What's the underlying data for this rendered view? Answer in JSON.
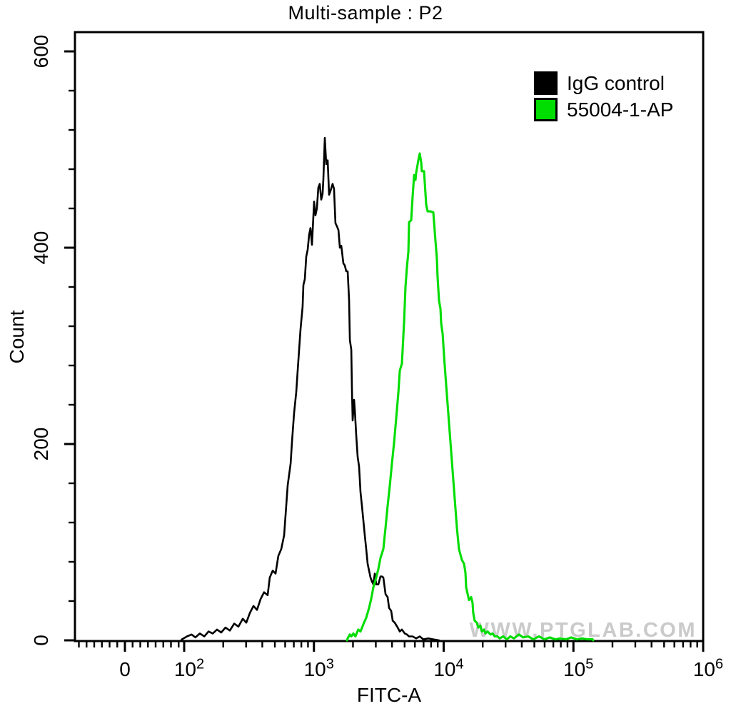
{
  "chart": {
    "title": "Multi-sample : P2",
    "watermark": "WWW.PTGLAB.COM",
    "legend": {
      "position": "top-right",
      "items": [
        {
          "label": "IgG control",
          "color": "#000000"
        },
        {
          "label": "55004-1-AP",
          "color": "#00DD00"
        }
      ]
    }
  },
  "chart_data": {
    "type": "line",
    "subtype": "flow-cytometry-histogram-overlay",
    "title": "Multi-sample : P2",
    "xlabel": "FITC-A",
    "ylabel": "Count",
    "x_scale": "biexponential (linear around 0, log10 from 1e2 to 1e6)",
    "x_ticks": [
      {
        "label": "0",
        "value": 0
      },
      {
        "base": "10",
        "exp": "2",
        "value": 100
      },
      {
        "base": "10",
        "exp": "3",
        "value": 1000
      },
      {
        "base": "10",
        "exp": "4",
        "value": 10000
      },
      {
        "base": "10",
        "exp": "5",
        "value": 100000
      },
      {
        "base": "10",
        "exp": "6",
        "value": 1000000
      }
    ],
    "ylim": [
      0,
      600
    ],
    "y_major_ticks": [
      0,
      200,
      400,
      600
    ],
    "y_minor_tick_step": 40,
    "grid": false,
    "legend_position": "top-right",
    "series": [
      {
        "name": "IgG control",
        "color": "#000000",
        "peak": {
          "x": 1210,
          "y": 512
        },
        "points": [
          [
            95,
            0
          ],
          [
            96,
            1
          ],
          [
            105,
            4
          ],
          [
            114,
            6
          ],
          [
            122,
            3
          ],
          [
            132,
            7
          ],
          [
            143,
            4
          ],
          [
            154,
            9
          ],
          [
            166,
            7
          ],
          [
            179,
            11
          ],
          [
            193,
            8
          ],
          [
            208,
            13
          ],
          [
            225,
            10
          ],
          [
            243,
            17
          ],
          [
            262,
            14
          ],
          [
            283,
            22
          ],
          [
            301,
            18
          ],
          [
            321,
            28
          ],
          [
            342,
            35
          ],
          [
            364,
            31
          ],
          [
            388,
            42
          ],
          [
            413,
            49
          ],
          [
            440,
            46
          ],
          [
            457,
            64
          ],
          [
            481,
            71
          ],
          [
            506,
            68
          ],
          [
            532,
            86
          ],
          [
            560,
            93
          ],
          [
            589,
            107
          ],
          [
            628,
            158
          ],
          [
            661,
            180
          ],
          [
            677,
            202
          ],
          [
            703,
            231
          ],
          [
            731,
            253
          ],
          [
            750,
            275
          ],
          [
            769,
            296
          ],
          [
            789,
            317
          ],
          [
            818,
            340
          ],
          [
            830,
            362
          ],
          [
            851,
            368
          ],
          [
            873,
            391
          ],
          [
            895,
            398
          ],
          [
            918,
            413
          ],
          [
            941,
            420
          ],
          [
            966,
            403
          ],
          [
            1003,
            447
          ],
          [
            1028,
            433
          ],
          [
            1054,
            440
          ],
          [
            1081,
            461
          ],
          [
            1109,
            465
          ],
          [
            1138,
            449
          ],
          [
            1167,
            455
          ],
          [
            1183,
            470
          ],
          [
            1213,
            512
          ],
          [
            1244,
            485
          ],
          [
            1276,
            489
          ],
          [
            1309,
            454
          ],
          [
            1343,
            458
          ],
          [
            1393,
            465
          ],
          [
            1429,
            460
          ],
          [
            1466,
            425
          ],
          [
            1503,
            422
          ],
          [
            1545,
            418
          ],
          [
            1584,
            400
          ],
          [
            1626,
            402
          ],
          [
            1687,
            384
          ],
          [
            1730,
            382
          ],
          [
            1774,
            376
          ],
          [
            1820,
            376
          ],
          [
            1866,
            347
          ],
          [
            1892,
            306
          ],
          [
            1940,
            296
          ],
          [
            1963,
            256
          ],
          [
            1989,
            224
          ],
          [
            2040,
            245
          ],
          [
            2065,
            235
          ],
          [
            2118,
            209
          ],
          [
            2172,
            187
          ],
          [
            2228,
            177
          ],
          [
            2286,
            151
          ],
          [
            2344,
            137
          ],
          [
            2404,
            122
          ],
          [
            2465,
            107
          ],
          [
            2529,
            93
          ],
          [
            2594,
            78
          ],
          [
            2661,
            71
          ],
          [
            2729,
            64
          ],
          [
            2799,
            60
          ],
          [
            2872,
            57
          ],
          [
            2945,
            68
          ],
          [
            3021,
            57
          ],
          [
            3139,
            57
          ],
          [
            3260,
            65
          ],
          [
            3343,
            65
          ],
          [
            3428,
            64
          ],
          [
            3565,
            47
          ],
          [
            3700,
            44
          ],
          [
            3795,
            33
          ],
          [
            3943,
            30
          ],
          [
            4045,
            20
          ],
          [
            4200,
            18
          ],
          [
            4420,
            13
          ],
          [
            4590,
            9
          ],
          [
            4765,
            11
          ],
          [
            5012,
            7
          ],
          [
            5210,
            6
          ],
          [
            5405,
            4
          ],
          [
            5765,
            4
          ],
          [
            6135,
            2
          ],
          [
            6545,
            4
          ],
          [
            6965,
            1
          ],
          [
            7620,
            2
          ],
          [
            8320,
            1
          ],
          [
            9210,
            0
          ]
        ]
      },
      {
        "name": "55004-1-AP",
        "color": "#00DD00",
        "peak": {
          "x": 6545,
          "y": 496
        },
        "points": [
          [
            1800,
            0
          ],
          [
            1820,
            2
          ],
          [
            1893,
            6
          ],
          [
            1940,
            4
          ],
          [
            2014,
            7
          ],
          [
            2090,
            4
          ],
          [
            2198,
            11
          ],
          [
            2286,
            9
          ],
          [
            2432,
            18
          ],
          [
            2529,
            23
          ],
          [
            2661,
            33
          ],
          [
            2762,
            42
          ],
          [
            2872,
            54
          ],
          [
            3020,
            64
          ],
          [
            3140,
            73
          ],
          [
            3260,
            84
          ],
          [
            3428,
            93
          ],
          [
            3565,
            115
          ],
          [
            3700,
            137
          ],
          [
            3846,
            158
          ],
          [
            3990,
            180
          ],
          [
            4150,
            202
          ],
          [
            4310,
            227
          ],
          [
            4477,
            253
          ],
          [
            4592,
            275
          ],
          [
            4765,
            282
          ],
          [
            4955,
            325
          ],
          [
            5080,
            360
          ],
          [
            5210,
            380
          ],
          [
            5345,
            396
          ],
          [
            5407,
            426
          ],
          [
            5620,
            428
          ],
          [
            5765,
            452
          ],
          [
            5915,
            474
          ],
          [
            6065,
            469
          ],
          [
            6135,
            476
          ],
          [
            6380,
            489
          ],
          [
            6545,
            496
          ],
          [
            6710,
            487
          ],
          [
            6790,
            478
          ],
          [
            7060,
            478
          ],
          [
            7330,
            444
          ],
          [
            7515,
            437
          ],
          [
            7910,
            437
          ],
          [
            8320,
            436
          ],
          [
            8640,
            407
          ],
          [
            8870,
            389
          ],
          [
            8970,
            371
          ],
          [
            9210,
            346
          ],
          [
            9440,
            338
          ],
          [
            9570,
            323
          ],
          [
            9820,
            312
          ],
          [
            10070,
            289
          ],
          [
            10450,
            260
          ],
          [
            10860,
            231
          ],
          [
            11280,
            202
          ],
          [
            11720,
            173
          ],
          [
            12170,
            144
          ],
          [
            12640,
            115
          ],
          [
            13120,
            93
          ],
          [
            13810,
            82
          ],
          [
            14350,
            78
          ],
          [
            14710,
            69
          ],
          [
            14900,
            54
          ],
          [
            15670,
            41
          ],
          [
            16290,
            44
          ],
          [
            16700,
            38
          ],
          [
            16900,
            28
          ],
          [
            17340,
            20
          ],
          [
            18010,
            18
          ],
          [
            18480,
            13
          ],
          [
            19200,
            15
          ],
          [
            19690,
            9
          ],
          [
            20460,
            11
          ],
          [
            20980,
            7
          ],
          [
            21790,
            9
          ],
          [
            22920,
            6
          ],
          [
            23820,
            7
          ],
          [
            24730,
            4
          ],
          [
            26000,
            4
          ],
          [
            27030,
            2
          ],
          [
            28780,
            4
          ],
          [
            30690,
            1
          ],
          [
            32670,
            4
          ],
          [
            34830,
            2
          ],
          [
            38020,
            6
          ],
          [
            41020,
            3
          ],
          [
            44870,
            4
          ],
          [
            48980,
            1
          ],
          [
            54200,
            4
          ],
          [
            59980,
            1
          ],
          [
            65610,
            3
          ],
          [
            72610,
            1
          ],
          [
            79430,
            2
          ],
          [
            87900,
            1
          ],
          [
            95940,
            3
          ],
          [
            106200,
            1
          ],
          [
            116100,
            2
          ],
          [
            128500,
            1
          ],
          [
            140300,
            1
          ],
          [
            142000,
            0
          ]
        ]
      }
    ]
  }
}
